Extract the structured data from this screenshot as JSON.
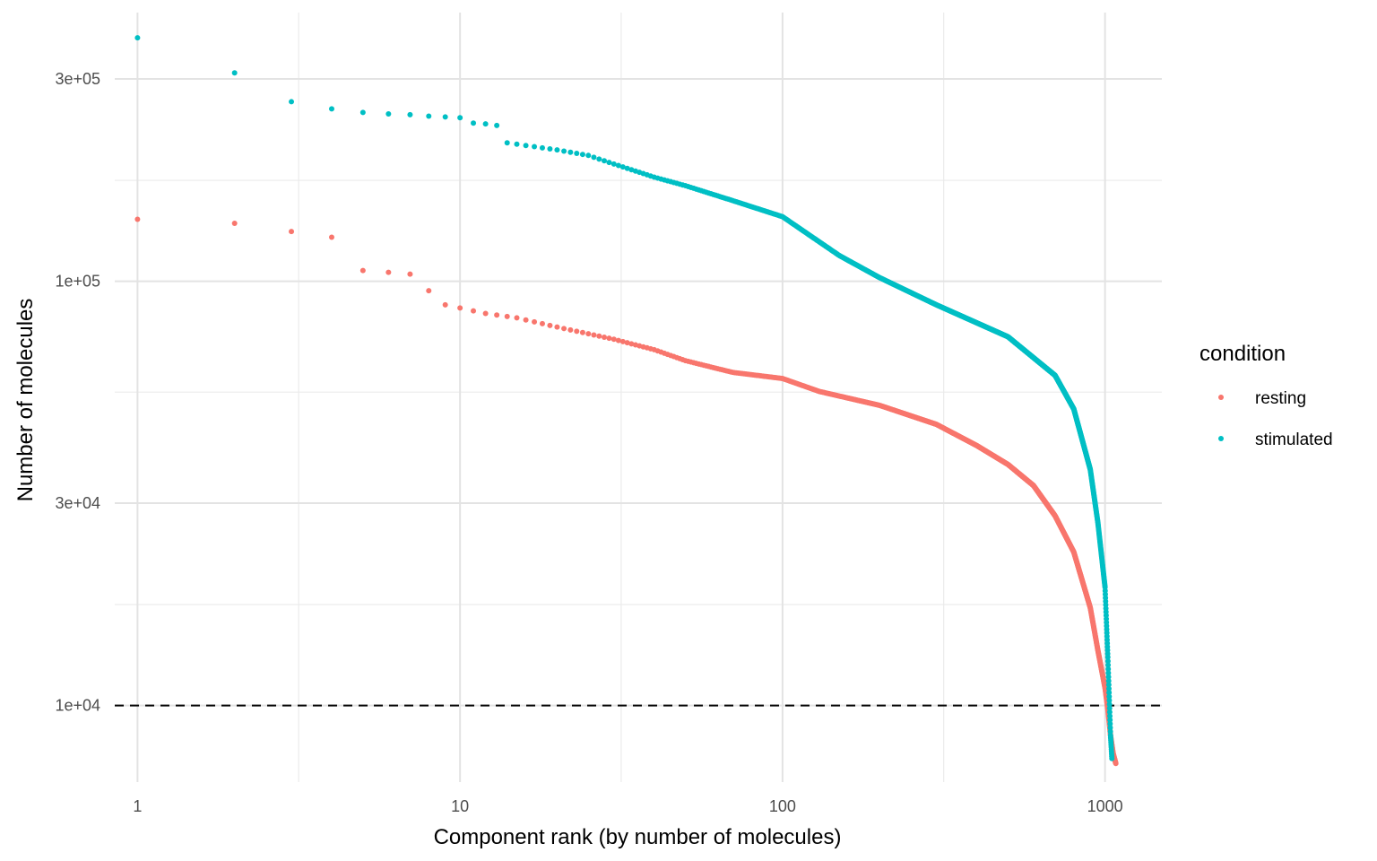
{
  "chart_data": {
    "type": "scatter",
    "xlabel": "Component rank (by number of molecules)",
    "ylabel": "Number of molecules",
    "x_scale": "log10",
    "y_scale": "log10",
    "xlim": [
      0.85,
      1500
    ],
    "ylim": [
      6600,
      430000
    ],
    "x_ticks": [
      1,
      10,
      100,
      1000
    ],
    "x_tick_labels": [
      "1",
      "10",
      "100",
      "1000"
    ],
    "y_ticks": [
      10000,
      30000,
      100000,
      300000
    ],
    "y_tick_labels": [
      "1e+04",
      "3e+04",
      "1e+05",
      "3e+05"
    ],
    "x_minor_gridlines": [
      3.16,
      31.6,
      316
    ],
    "y_minor_gridlines": [
      17300,
      54800,
      173000
    ],
    "grid": true,
    "reference_line": {
      "axis": "y",
      "value": 10000,
      "style": "dashed",
      "color": "#000000"
    },
    "legend": {
      "title": "condition",
      "position": "right"
    },
    "series": [
      {
        "name": "resting",
        "color": "#F8766D",
        "x": [
          1,
          2,
          3,
          4,
          5,
          6,
          7,
          8,
          9,
          10
        ],
        "y": [
          140000,
          137000,
          131000,
          127000,
          106000,
          105000,
          104000,
          95000,
          88000,
          86500
        ],
        "curve_points": [
          [
            10,
            86500
          ],
          [
            12,
            84000
          ],
          [
            15,
            82000
          ],
          [
            20,
            78000
          ],
          [
            30,
            73000
          ],
          [
            40,
            69000
          ],
          [
            50,
            65000
          ],
          [
            70,
            61000
          ],
          [
            100,
            59000
          ],
          [
            130,
            55000
          ],
          [
            200,
            51000
          ],
          [
            300,
            46000
          ],
          [
            400,
            41000
          ],
          [
            500,
            37000
          ],
          [
            600,
            33000
          ],
          [
            700,
            28000
          ],
          [
            800,
            23000
          ],
          [
            900,
            17000
          ],
          [
            950,
            13500
          ],
          [
            1000,
            11000
          ],
          [
            1020,
            9800
          ],
          [
            1040,
            8500
          ],
          [
            1060,
            7700
          ],
          [
            1080,
            7300
          ]
        ]
      },
      {
        "name": "stimulated",
        "color": "#00BFC4",
        "x": [
          1,
          2,
          3,
          4,
          5,
          6,
          7,
          8,
          9,
          10,
          11,
          12,
          13
        ],
        "y": [
          375000,
          310000,
          265000,
          255000,
          250000,
          248000,
          247000,
          245000,
          244000,
          243000,
          236000,
          235000,
          233000
        ],
        "curve_points": [
          [
            14,
            212000
          ],
          [
            16,
            209000
          ],
          [
            20,
            204000
          ],
          [
            25,
            198000
          ],
          [
            30,
            189000
          ],
          [
            40,
            176000
          ],
          [
            50,
            168000
          ],
          [
            70,
            155000
          ],
          [
            100,
            142000
          ],
          [
            150,
            115000
          ],
          [
            200,
            102000
          ],
          [
            300,
            88000
          ],
          [
            500,
            74000
          ],
          [
            700,
            60000
          ],
          [
            800,
            50000
          ],
          [
            900,
            36000
          ],
          [
            950,
            27000
          ],
          [
            1000,
            19000
          ],
          [
            1020,
            13000
          ],
          [
            1030,
            10500
          ],
          [
            1040,
            8500
          ],
          [
            1050,
            7500
          ]
        ]
      }
    ]
  }
}
